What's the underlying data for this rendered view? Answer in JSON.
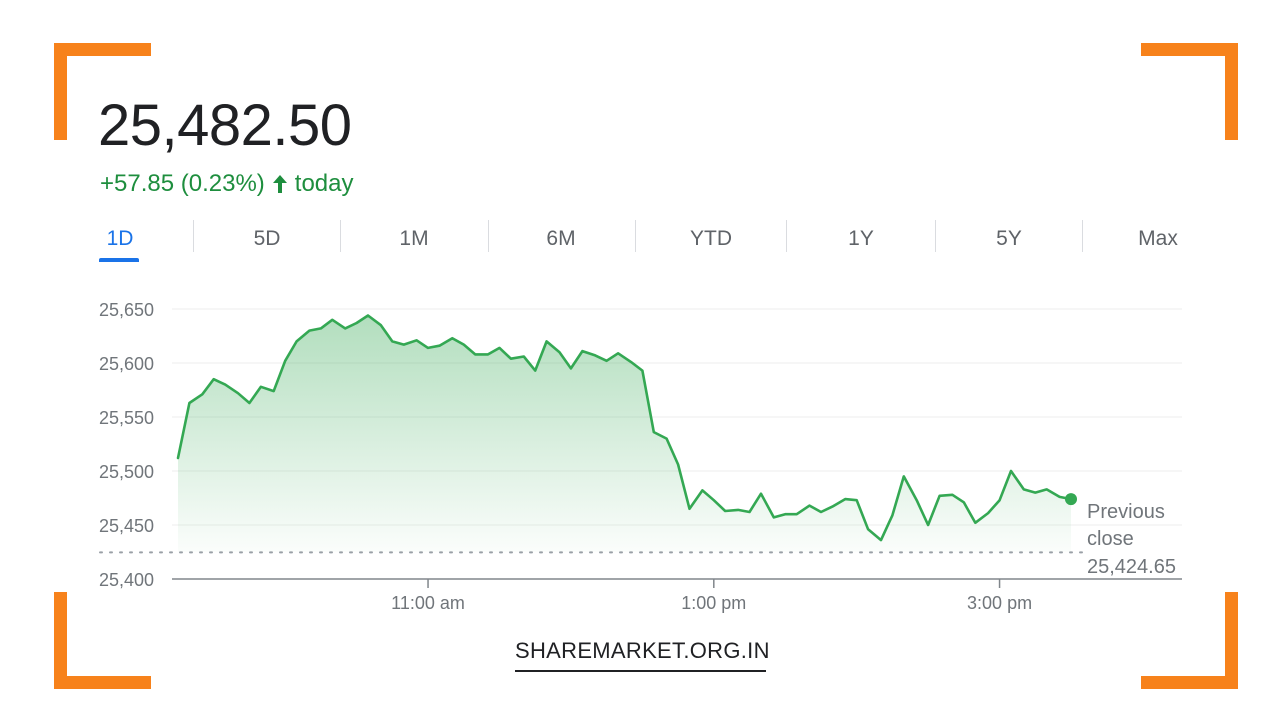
{
  "quote": {
    "price": "25,482.50",
    "change": "+57.85 (0.23%)",
    "period": "today",
    "direction_icon": "arrow-up-icon"
  },
  "tabs": [
    {
      "label": "1D",
      "active": true
    },
    {
      "label": "5D",
      "active": false
    },
    {
      "label": "1M",
      "active": false
    },
    {
      "label": "6M",
      "active": false
    },
    {
      "label": "YTD",
      "active": false
    },
    {
      "label": "1Y",
      "active": false
    },
    {
      "label": "5Y",
      "active": false
    },
    {
      "label": "Max",
      "active": false
    }
  ],
  "colors": {
    "accent": "#f7821b",
    "line": "#34a853",
    "positive_text": "#1e8e3e",
    "active_tab": "#1a73e8"
  },
  "chart_data": {
    "type": "area",
    "title": "",
    "xlabel": "",
    "ylabel": "",
    "ylim": [
      25400,
      25650
    ],
    "y_ticks": [
      "25,650",
      "25,600",
      "25,550",
      "25,500",
      "25,450",
      "25,400"
    ],
    "y_tick_values": [
      25650,
      25600,
      25550,
      25500,
      25450,
      25400
    ],
    "x_range_hours": [
      9.25,
      15.5
    ],
    "x_ticks": [
      {
        "label": "11:00 am",
        "hour": 11.0
      },
      {
        "label": "1:00 pm",
        "hour": 13.0
      },
      {
        "label": "3:00 pm",
        "hour": 15.0
      }
    ],
    "grid": true,
    "previous_close": {
      "label_line1": "Previous",
      "label_line2": "close",
      "value_label": "25,424.65",
      "value": 25424.65
    },
    "last_value": 25474,
    "series": [
      {
        "points": [
          [
            9.25,
            25512
          ],
          [
            9.33,
            25563
          ],
          [
            9.42,
            25571
          ],
          [
            9.5,
            25585
          ],
          [
            9.58,
            25580
          ],
          [
            9.67,
            25572
          ],
          [
            9.75,
            25563
          ],
          [
            9.83,
            25578
          ],
          [
            9.92,
            25574
          ],
          [
            10.0,
            25602
          ],
          [
            10.08,
            25620
          ],
          [
            10.17,
            25630
          ],
          [
            10.25,
            25632
          ],
          [
            10.33,
            25640
          ],
          [
            10.42,
            25632
          ],
          [
            10.5,
            25637
          ],
          [
            10.58,
            25644
          ],
          [
            10.67,
            25635
          ],
          [
            10.75,
            25620
          ],
          [
            10.83,
            25617
          ],
          [
            10.92,
            25621
          ],
          [
            11.0,
            25614
          ],
          [
            11.08,
            25616
          ],
          [
            11.17,
            25623
          ],
          [
            11.25,
            25617
          ],
          [
            11.33,
            25608
          ],
          [
            11.42,
            25608
          ],
          [
            11.5,
            25614
          ],
          [
            11.58,
            25604
          ],
          [
            11.67,
            25606
          ],
          [
            11.75,
            25593
          ],
          [
            11.83,
            25620
          ],
          [
            11.92,
            25610
          ],
          [
            12.0,
            25595
          ],
          [
            12.08,
            25611
          ],
          [
            12.17,
            25607
          ],
          [
            12.25,
            25602
          ],
          [
            12.33,
            25609
          ],
          [
            12.42,
            25601
          ],
          [
            12.5,
            25593
          ],
          [
            12.58,
            25536
          ],
          [
            12.67,
            25530
          ],
          [
            12.75,
            25506
          ],
          [
            12.83,
            25465
          ],
          [
            12.92,
            25482
          ],
          [
            13.0,
            25473
          ],
          [
            13.08,
            25463
          ],
          [
            13.17,
            25464
          ],
          [
            13.25,
            25462
          ],
          [
            13.33,
            25479
          ],
          [
            13.42,
            25457
          ],
          [
            13.5,
            25460
          ],
          [
            13.58,
            25460
          ],
          [
            13.67,
            25468
          ],
          [
            13.75,
            25462
          ],
          [
            13.83,
            25467
          ],
          [
            13.92,
            25474
          ],
          [
            14.0,
            25473
          ],
          [
            14.08,
            25446
          ],
          [
            14.17,
            25436
          ],
          [
            14.25,
            25459
          ],
          [
            14.33,
            25495
          ],
          [
            14.42,
            25473
          ],
          [
            14.5,
            25450
          ],
          [
            14.58,
            25477
          ],
          [
            14.67,
            25478
          ],
          [
            14.75,
            25471
          ],
          [
            14.83,
            25452
          ],
          [
            14.92,
            25461
          ],
          [
            15.0,
            25473
          ],
          [
            15.08,
            25500
          ],
          [
            15.17,
            25483
          ],
          [
            15.25,
            25480
          ],
          [
            15.33,
            25483
          ],
          [
            15.42,
            25476
          ],
          [
            15.5,
            25474
          ]
        ]
      }
    ]
  },
  "footer": {
    "site": "SHAREMARKET.ORG.IN"
  }
}
